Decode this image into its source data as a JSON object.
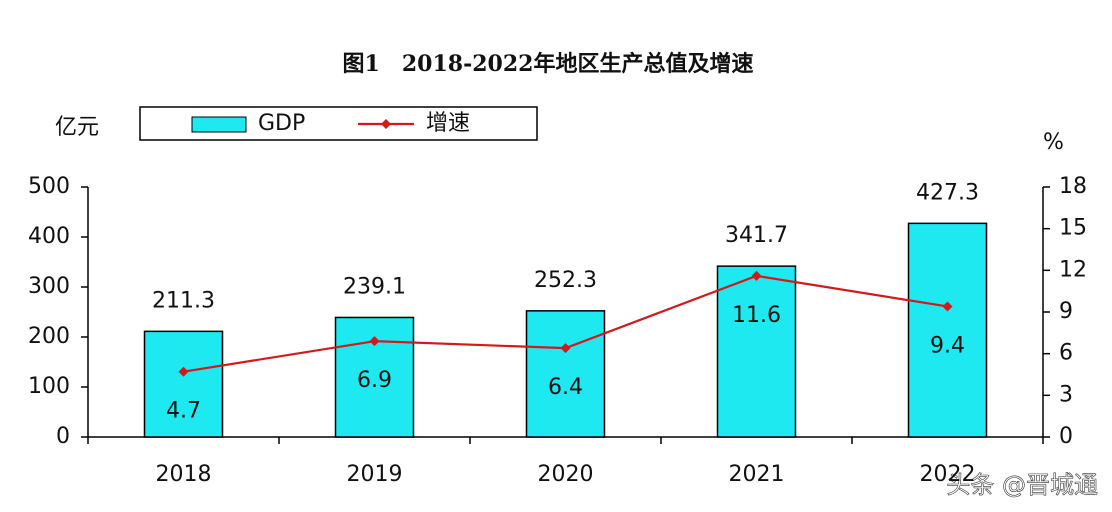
{
  "chart_data": {
    "type": "bar_line",
    "title": "图1　2018-2022年地区生产总值及增速",
    "y_label": "亿元",
    "y2_label": "%",
    "categories": [
      "2018",
      "2019",
      "2020",
      "2021",
      "2022"
    ],
    "series": [
      {
        "name": "GDP",
        "type": "bar",
        "color": "#1ee8f0",
        "values": [
          211.3,
          239.1,
          252.3,
          341.7,
          427.3
        ]
      },
      {
        "name": "增速",
        "type": "line",
        "axis": "y2",
        "color": "#d21a1a",
        "values": [
          4.7,
          6.9,
          6.4,
          11.6,
          9.4
        ]
      }
    ],
    "ylim": [
      0,
      500
    ],
    "yticks": [
      0,
      100,
      200,
      300,
      400,
      500
    ],
    "y2lim": [
      0,
      18
    ],
    "y2ticks": [
      0,
      3,
      6,
      9,
      12,
      15,
      18
    ],
    "watermark": "头条 @晋城通"
  }
}
